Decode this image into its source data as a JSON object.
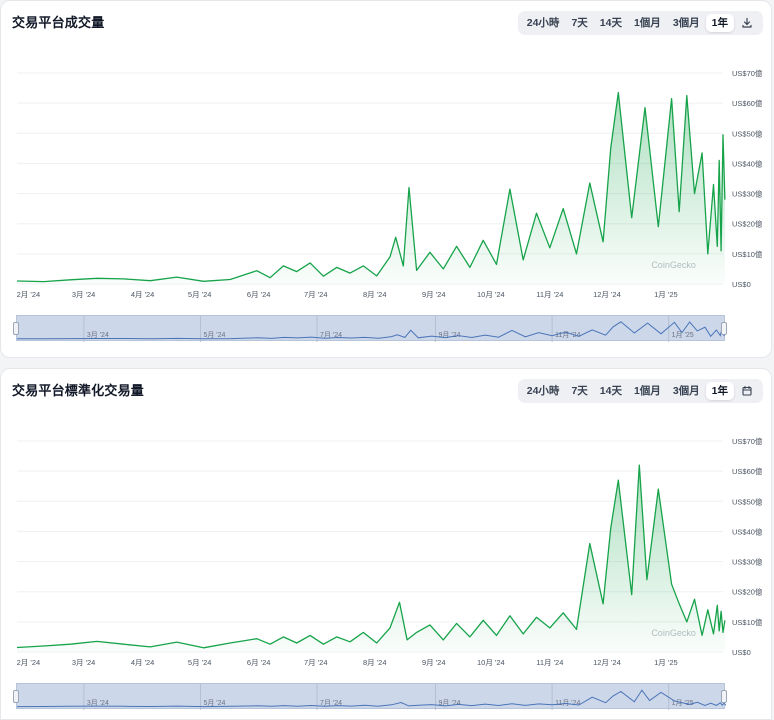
{
  "charts": [
    {
      "title": "交易平台成交量",
      "tabs": [
        "24小時",
        "7天",
        "14天",
        "1個月",
        "3個月",
        "1年"
      ],
      "active_tab": "1年",
      "extra_icon": "download-icon",
      "watermark": "CoinGecko",
      "accent": "#16a34a"
    },
    {
      "title": "交易平台標準化交易量",
      "tabs": [
        "24小時",
        "7天",
        "14天",
        "1個月",
        "3個月",
        "1年"
      ],
      "active_tab": "1年",
      "extra_icon": "calendar-icon",
      "watermark": "CoinGecko",
      "accent": "#16a34a"
    }
  ],
  "chart_data": [
    {
      "type": "area",
      "title": "交易平台成交量",
      "x_ticks": [
        "2月 '24",
        "3月 '24",
        "4月 '24",
        "5月 '24",
        "6月 '24",
        "7月 '24",
        "8月 '24",
        "9月 '24",
        "10月 '24",
        "11月 '24",
        "12月 '24",
        "1月 '25"
      ],
      "navigator_ticks": [
        "3月 '24",
        "5月 '24",
        "7月 '24",
        "9月 '24",
        "11月 '24",
        "1月 '25"
      ],
      "y_ticks": [
        "US$0",
        "US$10億",
        "US$20億",
        "US$30億",
        "US$40億",
        "US$50億",
        "US$60億",
        "US$70億"
      ],
      "ylim": [
        0,
        70
      ],
      "y_unit": "億 USD",
      "x_start": "2024-01-26",
      "x_end": "2025-01-31",
      "series": [
        {
          "points": [
            [
              "2024-01-26",
              1.0
            ],
            [
              "2024-02-09",
              0.8
            ],
            [
              "2024-02-23",
              1.4
            ],
            [
              "2024-03-08",
              1.9
            ],
            [
              "2024-03-22",
              1.7
            ],
            [
              "2024-04-05",
              1.1
            ],
            [
              "2024-04-19",
              2.3
            ],
            [
              "2024-05-03",
              0.9
            ],
            [
              "2024-05-17",
              1.5
            ],
            [
              "2024-05-31",
              4.4
            ],
            [
              "2024-06-07",
              2.1
            ],
            [
              "2024-06-14",
              6.0
            ],
            [
              "2024-06-21",
              4.1
            ],
            [
              "2024-06-28",
              7.0
            ],
            [
              "2024-07-05",
              2.6
            ],
            [
              "2024-07-12",
              5.5
            ],
            [
              "2024-07-19",
              3.6
            ],
            [
              "2024-07-26",
              6.0
            ],
            [
              "2024-08-02",
              2.7
            ],
            [
              "2024-08-09",
              9.0
            ],
            [
              "2024-08-12",
              15.5
            ],
            [
              "2024-08-16",
              6.0
            ],
            [
              "2024-08-19",
              32.0
            ],
            [
              "2024-08-23",
              4.5
            ],
            [
              "2024-08-30",
              10.5
            ],
            [
              "2024-09-06",
              5.0
            ],
            [
              "2024-09-13",
              12.5
            ],
            [
              "2024-09-20",
              5.5
            ],
            [
              "2024-09-27",
              14.5
            ],
            [
              "2024-10-04",
              6.5
            ],
            [
              "2024-10-11",
              31.5
            ],
            [
              "2024-10-18",
              8.0
            ],
            [
              "2024-10-25",
              23.5
            ],
            [
              "2024-11-01",
              12.0
            ],
            [
              "2024-11-08",
              25.0
            ],
            [
              "2024-11-15",
              10.0
            ],
            [
              "2024-11-22",
              33.5
            ],
            [
              "2024-11-29",
              14.0
            ],
            [
              "2024-12-03",
              45.0
            ],
            [
              "2024-12-07",
              63.5
            ],
            [
              "2024-12-14",
              22.0
            ],
            [
              "2024-12-21",
              58.5
            ],
            [
              "2024-12-28",
              19.0
            ],
            [
              "2025-01-04",
              61.5
            ],
            [
              "2025-01-08",
              24.0
            ],
            [
              "2025-01-12",
              62.5
            ],
            [
              "2025-01-16",
              30.0
            ],
            [
              "2025-01-20",
              43.5
            ],
            [
              "2025-01-23",
              10.0
            ],
            [
              "2025-01-26",
              33.0
            ],
            [
              "2025-01-28",
              12.5
            ],
            [
              "2025-01-29",
              41.0
            ],
            [
              "2025-01-30",
              11.0
            ],
            [
              "2025-01-31",
              49.5
            ],
            [
              "2025-02-01",
              28.0
            ]
          ]
        }
      ]
    },
    {
      "type": "area",
      "title": "交易平台標準化交易量",
      "x_ticks": [
        "2月 '24",
        "3月 '24",
        "4月 '24",
        "5月 '24",
        "6月 '24",
        "7月 '24",
        "8月 '24",
        "9月 '24",
        "10月 '24",
        "11月 '24",
        "12月 '24",
        "1月 '25"
      ],
      "navigator_ticks": [
        "3月 '24",
        "5月 '24",
        "7月 '24",
        "9月 '24",
        "11月 '24",
        "1月 '25"
      ],
      "y_ticks": [
        "US$0",
        "US$10億",
        "US$20億",
        "US$30億",
        "US$40億",
        "US$50億",
        "US$60億",
        "US$70億"
      ],
      "ylim": [
        0,
        70
      ],
      "y_unit": "億 USD",
      "x_start": "2024-01-26",
      "x_end": "2025-01-31",
      "series": [
        {
          "points": [
            [
              "2024-01-26",
              1.5
            ],
            [
              "2024-02-09",
              2.0
            ],
            [
              "2024-02-23",
              2.6
            ],
            [
              "2024-03-08",
              3.5
            ],
            [
              "2024-03-22",
              2.6
            ],
            [
              "2024-04-05",
              1.7
            ],
            [
              "2024-04-19",
              3.3
            ],
            [
              "2024-05-03",
              1.4
            ],
            [
              "2024-05-17",
              3.0
            ],
            [
              "2024-05-31",
              4.4
            ],
            [
              "2024-06-07",
              2.6
            ],
            [
              "2024-06-14",
              5.0
            ],
            [
              "2024-06-21",
              3.0
            ],
            [
              "2024-06-28",
              5.5
            ],
            [
              "2024-07-05",
              2.6
            ],
            [
              "2024-07-12",
              5.0
            ],
            [
              "2024-07-19",
              3.4
            ],
            [
              "2024-07-26",
              6.5
            ],
            [
              "2024-08-02",
              3.0
            ],
            [
              "2024-08-09",
              8.0
            ],
            [
              "2024-08-14",
              16.5
            ],
            [
              "2024-08-18",
              4.0
            ],
            [
              "2024-08-23",
              6.5
            ],
            [
              "2024-08-30",
              9.0
            ],
            [
              "2024-09-06",
              4.0
            ],
            [
              "2024-09-13",
              9.5
            ],
            [
              "2024-09-20",
              5.0
            ],
            [
              "2024-09-27",
              10.5
            ],
            [
              "2024-10-04",
              5.5
            ],
            [
              "2024-10-11",
              12.0
            ],
            [
              "2024-10-18",
              6.0
            ],
            [
              "2024-10-25",
              11.5
            ],
            [
              "2024-11-01",
              8.0
            ],
            [
              "2024-11-08",
              13.0
            ],
            [
              "2024-11-15",
              7.5
            ],
            [
              "2024-11-22",
              36.0
            ],
            [
              "2024-11-29",
              16.0
            ],
            [
              "2024-12-03",
              41.0
            ],
            [
              "2024-12-07",
              57.0
            ],
            [
              "2024-12-14",
              19.0
            ],
            [
              "2024-12-18",
              62.0
            ],
            [
              "2024-12-22",
              24.0
            ],
            [
              "2024-12-28",
              54.0
            ],
            [
              "2025-01-04",
              22.5
            ],
            [
              "2025-01-08",
              16.0
            ],
            [
              "2025-01-12",
              10.0
            ],
            [
              "2025-01-16",
              17.5
            ],
            [
              "2025-01-20",
              5.5
            ],
            [
              "2025-01-23",
              14.0
            ],
            [
              "2025-01-26",
              6.0
            ],
            [
              "2025-01-28",
              15.5
            ],
            [
              "2025-01-29",
              7.0
            ],
            [
              "2025-01-30",
              13.5
            ],
            [
              "2025-01-31",
              6.5
            ],
            [
              "2025-02-01",
              10.5
            ]
          ]
        }
      ]
    }
  ]
}
